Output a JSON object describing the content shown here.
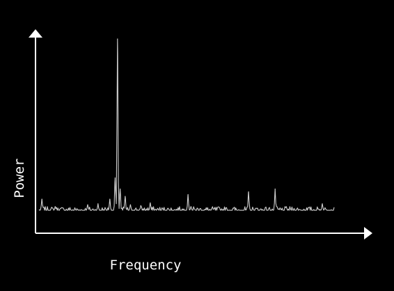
{
  "colors": {
    "background": "#000000",
    "axis": "#ffffff",
    "signal": "#d0d0d0"
  },
  "chart_data": {
    "type": "line",
    "title": "",
    "xlabel": "Frequency",
    "ylabel": "Power",
    "x_ticks": false,
    "y_ticks": false,
    "grid": false,
    "legend": "none",
    "xlim": [
      0,
      1
    ],
    "ylim": [
      0,
      1
    ],
    "noise_floor": 0.075,
    "noise_amplitude": 0.02,
    "noise_seed": 7,
    "peaks": [
      {
        "x": 0.01,
        "y": 0.135
      },
      {
        "x": 0.055,
        "y": 0.095
      },
      {
        "x": 0.165,
        "y": 0.105
      },
      {
        "x": 0.2,
        "y": 0.11
      },
      {
        "x": 0.24,
        "y": 0.135
      },
      {
        "x": 0.258,
        "y": 0.25
      },
      {
        "x": 0.266,
        "y": 1.0
      },
      {
        "x": 0.275,
        "y": 0.19
      },
      {
        "x": 0.292,
        "y": 0.15
      },
      {
        "x": 0.31,
        "y": 0.105
      },
      {
        "x": 0.345,
        "y": 0.1
      },
      {
        "x": 0.377,
        "y": 0.115
      },
      {
        "x": 0.505,
        "y": 0.16
      },
      {
        "x": 0.515,
        "y": 0.095
      },
      {
        "x": 0.71,
        "y": 0.175
      },
      {
        "x": 0.8,
        "y": 0.19
      },
      {
        "x": 0.96,
        "y": 0.11
      }
    ]
  }
}
